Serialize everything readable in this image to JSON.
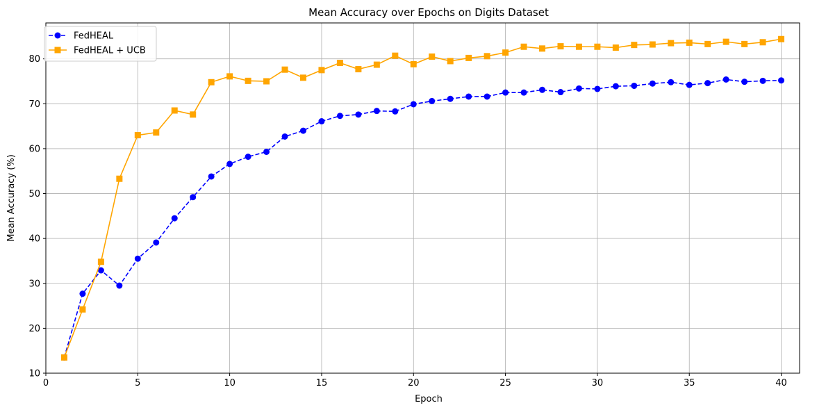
{
  "chart_data": {
    "type": "line",
    "title": "Mean Accuracy over Epochs on Digits Dataset",
    "xlabel": "Epoch",
    "ylabel": "Mean Accuracy (%)",
    "xlim": [
      0,
      41
    ],
    "ylim": [
      10,
      88
    ],
    "xticks": [
      0,
      5,
      10,
      15,
      20,
      25,
      30,
      35,
      40
    ],
    "yticks": [
      10,
      20,
      30,
      40,
      50,
      60,
      70,
      80
    ],
    "grid": true,
    "legend_position": "top-left",
    "x": [
      1,
      2,
      3,
      4,
      5,
      6,
      7,
      8,
      9,
      10,
      11,
      12,
      13,
      14,
      15,
      16,
      17,
      18,
      19,
      20,
      21,
      22,
      23,
      24,
      25,
      26,
      27,
      28,
      29,
      30,
      31,
      32,
      33,
      34,
      35,
      36,
      37,
      38,
      39,
      40
    ],
    "series": [
      {
        "name": "FedHEAL",
        "color": "#0000ff",
        "line_style": "dashed",
        "marker": "circle",
        "values": [
          13.5,
          27.7,
          32.9,
          29.5,
          35.5,
          39.1,
          44.5,
          49.2,
          53.8,
          56.6,
          58.2,
          59.3,
          62.7,
          64.0,
          66.1,
          67.3,
          67.6,
          68.4,
          68.3,
          69.9,
          70.6,
          71.1,
          71.6,
          71.6,
          72.5,
          72.5,
          73.1,
          72.6,
          73.4,
          73.3,
          73.9,
          74.0,
          74.5,
          74.8,
          74.2,
          74.6,
          75.4,
          74.9,
          75.1,
          75.2
        ]
      },
      {
        "name": "FedHEAL + UCB",
        "color": "#ffa500",
        "line_style": "solid",
        "marker": "square",
        "values": [
          13.5,
          24.2,
          34.8,
          53.3,
          63.0,
          63.6,
          68.5,
          67.6,
          74.8,
          76.1,
          75.1,
          75.0,
          77.6,
          75.8,
          77.5,
          79.1,
          77.7,
          78.7,
          80.7,
          78.8,
          80.5,
          79.5,
          80.2,
          80.6,
          81.4,
          82.7,
          82.3,
          82.8,
          82.7,
          82.7,
          82.5,
          83.1,
          83.2,
          83.5,
          83.6,
          83.3,
          83.8,
          83.3,
          83.7,
          84.4
        ]
      }
    ]
  }
}
